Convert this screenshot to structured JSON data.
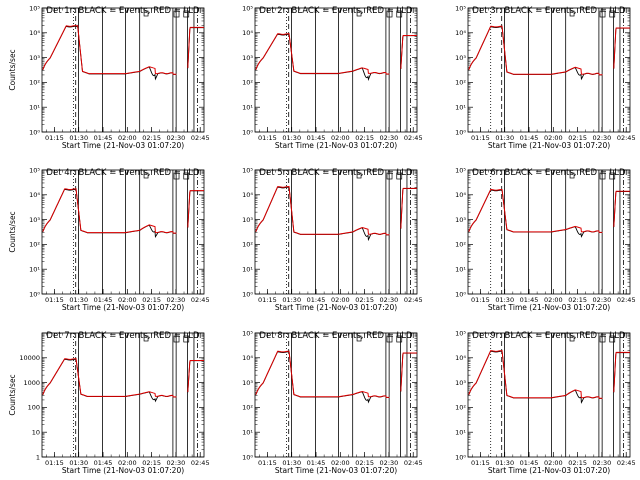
{
  "chart_data": {
    "type": "line",
    "layout": "3x3 grid of panels",
    "y_scale": "log",
    "x_tick_labels": [
      "01:15",
      "01:30",
      "01:45",
      "02:00",
      "02:15",
      "02:30",
      "02:45"
    ],
    "y_tick_labels_exponent": [
      "10⁰",
      "10¹",
      "10²",
      "10³",
      "10⁴",
      "10⁵"
    ],
    "y_tick_labels_plain": [
      "1",
      "10",
      "100",
      "1000",
      "10000"
    ],
    "ylabel": "Counts/sec",
    "xlabel": "Start Time (21-Nov-03 01:07:20)",
    "x_range_minutes_after_01_07_20": [
      0,
      100
    ],
    "series_legend": {
      "black": "Events",
      "red": "LLD"
    },
    "panels": [
      {
        "title": "Det 1r: BLACK = Events, RED = LLD",
        "tick_style": "exponent",
        "show_ylabel": true,
        "dotted_at": 19.5,
        "dashed_at": 20.8,
        "solid_at": [
          22.5,
          37.3,
          51.5,
          60.3,
          80.8,
          82.8,
          89.8,
          93.8
        ],
        "dashdot_at": [
          96
        ],
        "peak": 19000,
        "baseline": 210,
        "bump": 420,
        "dip_offset": 0.55,
        "x_rise": 15,
        "x_fall": 22,
        "pre_end": 5
      },
      {
        "title": "Det 2r: BLACK = Events, RED = LLD",
        "tick_style": "exponent",
        "show_ylabel": false,
        "dotted_at": 19.5,
        "dashed_at": 20.8,
        "solid_at": [
          22.5,
          37.3,
          51.5,
          60.3,
          80.8,
          82.8,
          89.8,
          93.8
        ],
        "dashdot_at": [
          96
        ],
        "peak": 9000,
        "baseline": 215,
        "bump": 380,
        "dip_offset": 0.6,
        "x_rise": 14,
        "x_fall": 21,
        "pre_end": 5
      },
      {
        "title": "Det 3r: BLACK = Events, RED = LLD",
        "tick_style": "exponent",
        "show_ylabel": false,
        "dotted_at": 14,
        "dashed_at": 20.8,
        "solid_at": [
          22.5,
          37.3,
          51.5,
          60.3,
          80.8,
          82.8,
          89.8,
          93.8
        ],
        "dashdot_at": [
          96
        ],
        "peak": 18000,
        "baseline": 200,
        "bump": 400,
        "dip_offset": 0.5,
        "x_rise": 14,
        "x_fall": 21,
        "pre_end": 5
      },
      {
        "title": "Det 4r: BLACK = Events, RED = LLD",
        "tick_style": "exponent",
        "show_ylabel": true,
        "dotted_at": 19.5,
        "dashed_at": 20.8,
        "solid_at": [
          22.5,
          37.3,
          51.5,
          60.3,
          80.8,
          82.8,
          89.8,
          93.8
        ],
        "dashdot_at": [
          96
        ],
        "peak": 17000,
        "baseline": 280,
        "bump": 600,
        "dip_offset": 0.45,
        "x_rise": 14,
        "x_fall": 21,
        "pre_end": 5
      },
      {
        "title": "Det 5r: BLACK = Events, RED = LLD",
        "tick_style": "exponent",
        "show_ylabel": false,
        "dotted_at": 19.5,
        "dashed_at": 20.8,
        "solid_at": [
          22.5,
          37.3,
          51.5,
          60.3,
          80.8,
          82.8,
          89.8,
          93.8
        ],
        "dashdot_at": [
          96
        ],
        "peak": 21000,
        "baseline": 240,
        "bump": 470,
        "dip_offset": 0.55,
        "x_rise": 14,
        "x_fall": 21,
        "pre_end": 5
      },
      {
        "title": "Det 6r: BLACK = Events, RED = LLD",
        "tick_style": "exponent",
        "show_ylabel": false,
        "dotted_at": 14,
        "dashed_at": 20.8,
        "solid_at": [
          22.5,
          37.3,
          51.5,
          60.3,
          80.8,
          82.8,
          89.8,
          93.8
        ],
        "dashdot_at": [
          96
        ],
        "peak": 16000,
        "baseline": 300,
        "bump": 520,
        "dip_offset": 0.5,
        "x_rise": 14,
        "x_fall": 21,
        "pre_end": 5
      },
      {
        "title": "Det 7r: BLACK = Events, RED = LLD",
        "tick_style": "plain",
        "show_ylabel": true,
        "dotted_at": 19.5,
        "dashed_at": 20.8,
        "solid_at": [
          22.5,
          37.3,
          51.5,
          60.3,
          80.8,
          82.8,
          89.8,
          93.8
        ],
        "dashdot_at": [
          96
        ],
        "peak": 9000,
        "baseline": 260,
        "bump": 420,
        "dip_offset": 0.5,
        "x_rise": 14,
        "x_fall": 21,
        "pre_end": 5
      },
      {
        "title": "Det 8r: BLACK = Events, RED = LLD",
        "tick_style": "exponent",
        "show_ylabel": false,
        "dotted_at": 19.5,
        "dashed_at": 20.8,
        "solid_at": [
          22.5,
          37.3,
          51.5,
          60.3,
          80.8,
          82.8,
          89.8,
          93.8
        ],
        "dashdot_at": [
          96
        ],
        "peak": 18000,
        "baseline": 250,
        "bump": 430,
        "dip_offset": 0.55,
        "x_rise": 14,
        "x_fall": 21,
        "pre_end": 5
      },
      {
        "title": "Det 9r: BLACK = Events, RED = LLD",
        "tick_style": "exponent",
        "show_ylabel": false,
        "dotted_at": 14,
        "dashed_at": 20.8,
        "solid_at": [
          22.5,
          37.3,
          51.5,
          60.3,
          80.8,
          82.8,
          89.8,
          93.8
        ],
        "dashdot_at": [
          96
        ],
        "peak": 19000,
        "baseline": 230,
        "bump": 500,
        "dip_offset": 0.5,
        "x_rise": 14,
        "x_fall": 21,
        "pre_end": 5
      }
    ],
    "colors": {
      "events": "#000000",
      "lld": "#dd0000",
      "axes": "#000000"
    }
  }
}
